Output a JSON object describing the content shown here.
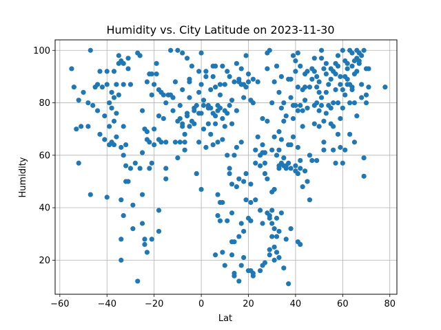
{
  "chart_data": {
    "type": "scatter",
    "title": "Humidity vs. City Latitude on 2023-11-30",
    "xlabel": "Lat",
    "ylabel": "Humidity",
    "xlim": [
      -62,
      83
    ],
    "ylim": [
      7,
      104
    ],
    "xticks": [
      -60,
      -40,
      -20,
      0,
      20,
      40,
      60,
      80
    ],
    "yticks": [
      20,
      40,
      60,
      80,
      100
    ],
    "grid": true,
    "marker_color": "#1f77b4",
    "points": [
      [
        -55,
        93
      ],
      [
        -54,
        86
      ],
      [
        -53,
        70
      ],
      [
        -52,
        57
      ],
      [
        -52,
        81
      ],
      [
        -51,
        71
      ],
      [
        -50,
        84
      ],
      [
        -48,
        71
      ],
      [
        -48,
        80
      ],
      [
        -47,
        45
      ],
      [
        -47,
        100
      ],
      [
        -46,
        79
      ],
      [
        -45,
        86
      ],
      [
        -44,
        87
      ],
      [
        -44,
        77
      ],
      [
        -43,
        68
      ],
      [
        -43,
        92
      ],
      [
        -42,
        86
      ],
      [
        -41,
        66
      ],
      [
        -41,
        75
      ],
      [
        -40,
        44
      ],
      [
        -40,
        87
      ],
      [
        -40,
        92
      ],
      [
        -39,
        64
      ],
      [
        -39,
        71
      ],
      [
        -39,
        80
      ],
      [
        -38,
        65
      ],
      [
        -38,
        78
      ],
      [
        -38,
        84
      ],
      [
        -37,
        64
      ],
      [
        -37,
        73
      ],
      [
        -37,
        82
      ],
      [
        -37,
        92
      ],
      [
        -36,
        67
      ],
      [
        -36,
        76
      ],
      [
        -36,
        87
      ],
      [
        -35,
        98
      ],
      [
        -35,
        95
      ],
      [
        -35,
        83
      ],
      [
        -34,
        63
      ],
      [
        -34,
        96
      ],
      [
        -34,
        28
      ],
      [
        -34,
        20
      ],
      [
        -34,
        43
      ],
      [
        -33,
        95
      ],
      [
        -33,
        60
      ],
      [
        -33,
        71
      ],
      [
        -33,
        37
      ],
      [
        -33,
        87
      ],
      [
        -32,
        56
      ],
      [
        -32,
        64
      ],
      [
        -32,
        50
      ],
      [
        -31,
        50
      ],
      [
        -31,
        93
      ],
      [
        -31,
        97
      ],
      [
        -30,
        87
      ],
      [
        -30,
        55
      ],
      [
        -29,
        32
      ],
      [
        -29,
        41
      ],
      [
        -28,
        57
      ],
      [
        -27,
        12
      ],
      [
        -27,
        99
      ],
      [
        -26,
        98
      ],
      [
        -26,
        55
      ],
      [
        -25,
        61
      ],
      [
        -25,
        45
      ],
      [
        -25,
        34
      ],
      [
        -25,
        77
      ],
      [
        -24,
        28
      ],
      [
        -24,
        70
      ],
      [
        -24,
        26
      ],
      [
        -23,
        69
      ],
      [
        -23,
        23
      ],
      [
        -23,
        66
      ],
      [
        -23,
        88
      ],
      [
        -22,
        65
      ],
      [
        -22,
        55
      ],
      [
        -22,
        91
      ],
      [
        -21,
        57
      ],
      [
        -21,
        83
      ],
      [
        -21,
        91
      ],
      [
        -21,
        28
      ],
      [
        -20,
        87
      ],
      [
        -20,
        70
      ],
      [
        -20,
        64
      ],
      [
        -19,
        91
      ],
      [
        -19,
        95
      ],
      [
        -18,
        31
      ],
      [
        -18,
        39
      ],
      [
        -18,
        85
      ],
      [
        -18,
        75
      ],
      [
        -18,
        66
      ],
      [
        -17,
        65
      ],
      [
        -17,
        84
      ],
      [
        -16,
        74
      ],
      [
        -16,
        83
      ],
      [
        -15,
        55
      ],
      [
        -15,
        51
      ],
      [
        -15,
        65
      ],
      [
        -15,
        80
      ],
      [
        -14,
        83
      ],
      [
        -13,
        83
      ],
      [
        -13,
        100
      ],
      [
        -12,
        82
      ],
      [
        -12,
        77
      ],
      [
        -11,
        65
      ],
      [
        -11,
        88
      ],
      [
        -10,
        59
      ],
      [
        -10,
        73
      ],
      [
        -10,
        100
      ],
      [
        -9,
        79
      ],
      [
        -9,
        74
      ],
      [
        -9,
        65
      ],
      [
        -8,
        71
      ],
      [
        -8,
        99
      ],
      [
        -8,
        85
      ],
      [
        -8,
        72
      ],
      [
        -7,
        68
      ],
      [
        -7,
        65
      ],
      [
        -7,
        62
      ],
      [
        -6,
        97
      ],
      [
        -6,
        75
      ],
      [
        -6,
        76
      ],
      [
        -5,
        82
      ],
      [
        -5,
        71
      ],
      [
        -5,
        88
      ],
      [
        -5,
        89
      ],
      [
        -4,
        94
      ],
      [
        -4,
        73
      ],
      [
        -3,
        78
      ],
      [
        -3,
        77
      ],
      [
        -3,
        72
      ],
      [
        -2,
        79
      ],
      [
        -2,
        53
      ],
      [
        -1,
        92
      ],
      [
        -1,
        76
      ],
      [
        -1,
        65
      ],
      [
        -1,
        84
      ],
      [
        0,
        99
      ],
      [
        0,
        47
      ],
      [
        0,
        76
      ],
      [
        0,
        87
      ],
      [
        1,
        70
      ],
      [
        1,
        79
      ],
      [
        1,
        81
      ],
      [
        2,
        92
      ],
      [
        2,
        63
      ],
      [
        2,
        90
      ],
      [
        3,
        79
      ],
      [
        3,
        72
      ],
      [
        3,
        78
      ],
      [
        4,
        68
      ],
      [
        4,
        78
      ],
      [
        4,
        85
      ],
      [
        5,
        64
      ],
      [
        5,
        76
      ],
      [
        5,
        90
      ],
      [
        5,
        94
      ],
      [
        6,
        94
      ],
      [
        6,
        75
      ],
      [
        6,
        72
      ],
      [
        6,
        86
      ],
      [
        6,
        22
      ],
      [
        7,
        65
      ],
      [
        7,
        45
      ],
      [
        7,
        37
      ],
      [
        7,
        79
      ],
      [
        7,
        77
      ],
      [
        8,
        42
      ],
      [
        8,
        35
      ],
      [
        8,
        87
      ],
      [
        8,
        83
      ],
      [
        8,
        78
      ],
      [
        9,
        42
      ],
      [
        9,
        23
      ],
      [
        9,
        94
      ],
      [
        9,
        66
      ],
      [
        9,
        74
      ],
      [
        10,
        18
      ],
      [
        10,
        77
      ],
      [
        10,
        71
      ],
      [
        10,
        87
      ],
      [
        11,
        35
      ],
      [
        11,
        60
      ],
      [
        11,
        76
      ],
      [
        11,
        92
      ],
      [
        12,
        55
      ],
      [
        12,
        53
      ],
      [
        12,
        79
      ],
      [
        12,
        90
      ],
      [
        13,
        22
      ],
      [
        13,
        27
      ],
      [
        13,
        38
      ],
      [
        13,
        49
      ],
      [
        13,
        72
      ],
      [
        13,
        81
      ],
      [
        14,
        27
      ],
      [
        14,
        15
      ],
      [
        14,
        14
      ],
      [
        14,
        60
      ],
      [
        14,
        88
      ],
      [
        15,
        48
      ],
      [
        15,
        63
      ],
      [
        15,
        77
      ],
      [
        15,
        95
      ],
      [
        16,
        29
      ],
      [
        16,
        12
      ],
      [
        16,
        51
      ],
      [
        16,
        88
      ],
      [
        16,
        89
      ],
      [
        17,
        65
      ],
      [
        17,
        34
      ],
      [
        17,
        18
      ],
      [
        17,
        87
      ],
      [
        17,
        93
      ],
      [
        18,
        21
      ],
      [
        18,
        31
      ],
      [
        18,
        50
      ],
      [
        18,
        82
      ],
      [
        18,
        87
      ],
      [
        19,
        43
      ],
      [
        19,
        53
      ],
      [
        19,
        86
      ],
      [
        19,
        98
      ],
      [
        20,
        16
      ],
      [
        20,
        36
      ],
      [
        20,
        88
      ],
      [
        20,
        91
      ],
      [
        21,
        35
      ],
      [
        21,
        49
      ],
      [
        21,
        81
      ],
      [
        21,
        42
      ],
      [
        21,
        16
      ],
      [
        22,
        80
      ],
      [
        22,
        89
      ],
      [
        22,
        15
      ],
      [
        22,
        14
      ],
      [
        23,
        57
      ],
      [
        23,
        43
      ],
      [
        23,
        62
      ],
      [
        24,
        67
      ],
      [
        24,
        88
      ],
      [
        25,
        39
      ],
      [
        25,
        16
      ],
      [
        25,
        60
      ],
      [
        25,
        56
      ],
      [
        26,
        61
      ],
      [
        26,
        18
      ],
      [
        26,
        34
      ],
      [
        26,
        64
      ],
      [
        26,
        74
      ],
      [
        27,
        19
      ],
      [
        27,
        57
      ],
      [
        27,
        53
      ],
      [
        27,
        61
      ],
      [
        28,
        38
      ],
      [
        28,
        51
      ],
      [
        28,
        73
      ],
      [
        28,
        93
      ],
      [
        28,
        99
      ],
      [
        29,
        37
      ],
      [
        29,
        24
      ],
      [
        29,
        22
      ],
      [
        29,
        36
      ],
      [
        29,
        100
      ],
      [
        30,
        29
      ],
      [
        30,
        39
      ],
      [
        30,
        34
      ],
      [
        30,
        62
      ],
      [
        30,
        46
      ],
      [
        30,
        80
      ],
      [
        31,
        20
      ],
      [
        31,
        32
      ],
      [
        31,
        25
      ],
      [
        31,
        47
      ],
      [
        31,
        67
      ],
      [
        31,
        88
      ],
      [
        32,
        60
      ],
      [
        32,
        94
      ],
      [
        32,
        36
      ],
      [
        32,
        23
      ],
      [
        32,
        29
      ],
      [
        33,
        31
      ],
      [
        33,
        21
      ],
      [
        33,
        55
      ],
      [
        33,
        56
      ],
      [
        33,
        62
      ],
      [
        33,
        69
      ],
      [
        33,
        84
      ],
      [
        34,
        38
      ],
      [
        34,
        57
      ],
      [
        34,
        66
      ],
      [
        34,
        78
      ],
      [
        34,
        90
      ],
      [
        35,
        17
      ],
      [
        35,
        56
      ],
      [
        35,
        73
      ],
      [
        35,
        80
      ],
      [
        35,
        59
      ],
      [
        36,
        28
      ],
      [
        36,
        55
      ],
      [
        36,
        56
      ],
      [
        36,
        75
      ],
      [
        37,
        11
      ],
      [
        37,
        64
      ],
      [
        37,
        57
      ],
      [
        37,
        89
      ],
      [
        38,
        82
      ],
      [
        38,
        64
      ],
      [
        38,
        89
      ],
      [
        38,
        55
      ],
      [
        38,
        32
      ],
      [
        39,
        79
      ],
      [
        39,
        98
      ],
      [
        39,
        74
      ],
      [
        39,
        67
      ],
      [
        40,
        56
      ],
      [
        40,
        54
      ],
      [
        40,
        79
      ],
      [
        40,
        96
      ],
      [
        40,
        92
      ],
      [
        41,
        77
      ],
      [
        41,
        27
      ],
      [
        41,
        53
      ],
      [
        41,
        63
      ],
      [
        41,
        86
      ],
      [
        41,
        99
      ],
      [
        42,
        26
      ],
      [
        42,
        58
      ],
      [
        42,
        55
      ],
      [
        42,
        79
      ],
      [
        42,
        94
      ],
      [
        43,
        48
      ],
      [
        43,
        77
      ],
      [
        43,
        85
      ],
      [
        43,
        71
      ],
      [
        44,
        54
      ],
      [
        44,
        81
      ],
      [
        44,
        91
      ],
      [
        44,
        86
      ],
      [
        45,
        50
      ],
      [
        45,
        92
      ],
      [
        45,
        78
      ],
      [
        46,
        43
      ],
      [
        46,
        60
      ],
      [
        46,
        86
      ],
      [
        47,
        89
      ],
      [
        47,
        58
      ],
      [
        47,
        93
      ],
      [
        48,
        72
      ],
      [
        48,
        79
      ],
      [
        48,
        97
      ],
      [
        48,
        92
      ],
      [
        49,
        90
      ],
      [
        49,
        80
      ],
      [
        49,
        58
      ],
      [
        49,
        86
      ],
      [
        50,
        77
      ],
      [
        50,
        88
      ],
      [
        50,
        84
      ],
      [
        50,
        71
      ],
      [
        51,
        100
      ],
      [
        51,
        97
      ],
      [
        51,
        82
      ],
      [
        51,
        79
      ],
      [
        52,
        73
      ],
      [
        52,
        62
      ],
      [
        52,
        65
      ],
      [
        52,
        93
      ],
      [
        53,
        91
      ],
      [
        53,
        84
      ],
      [
        53,
        95
      ],
      [
        53,
        76
      ],
      [
        54,
        87
      ],
      [
        54,
        79
      ],
      [
        55,
        72
      ],
      [
        55,
        78
      ],
      [
        55,
        89
      ],
      [
        55,
        93
      ],
      [
        56,
        92
      ],
      [
        56,
        80
      ],
      [
        56,
        71
      ],
      [
        56,
        62
      ],
      [
        57,
        91
      ],
      [
        57,
        95
      ],
      [
        57,
        57
      ],
      [
        57,
        85
      ],
      [
        58,
        98
      ],
      [
        58,
        94
      ],
      [
        58,
        80
      ],
      [
        58,
        68
      ],
      [
        59,
        87
      ],
      [
        59,
        90
      ],
      [
        59,
        63
      ],
      [
        59,
        74
      ],
      [
        60,
        85
      ],
      [
        60,
        100
      ],
      [
        60,
        57
      ],
      [
        60,
        78
      ],
      [
        61,
        96
      ],
      [
        61,
        90
      ],
      [
        61,
        83
      ],
      [
        61,
        62
      ],
      [
        62,
        95
      ],
      [
        62,
        89
      ],
      [
        62,
        87
      ],
      [
        62,
        93
      ],
      [
        63,
        68
      ],
      [
        63,
        100
      ],
      [
        63,
        80
      ],
      [
        63,
        87
      ],
      [
        64,
        99
      ],
      [
        64,
        94
      ],
      [
        64,
        85
      ],
      [
        64,
        86
      ],
      [
        65,
        96
      ],
      [
        65,
        65
      ],
      [
        65,
        80
      ],
      [
        65,
        91
      ],
      [
        66,
        92
      ],
      [
        66,
        97
      ],
      [
        66,
        75
      ],
      [
        66,
        100
      ],
      [
        67,
        95
      ],
      [
        67,
        96
      ],
      [
        67,
        99
      ],
      [
        68,
        82
      ],
      [
        68,
        87
      ],
      [
        68,
        98
      ],
      [
        69,
        52
      ],
      [
        69,
        59
      ],
      [
        69,
        100
      ],
      [
        70,
        83
      ],
      [
        70,
        93
      ],
      [
        70,
        80
      ],
      [
        71,
        86
      ],
      [
        71,
        93
      ],
      [
        78,
        86
      ]
    ]
  }
}
